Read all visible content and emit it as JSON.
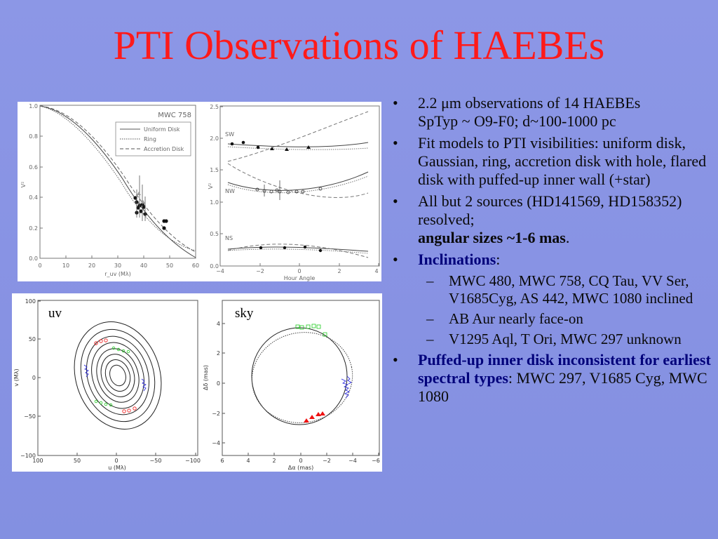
{
  "title": "PTI Observations of HAEBEs",
  "figure_top": {
    "left": {
      "object_label": "MWC 758",
      "legend": [
        "Uniform Disk",
        "Ring",
        "Accretion Disk"
      ],
      "xlabel": "r_uv (Mλ)",
      "ylabel": "V²",
      "xticks": [
        "0",
        "10",
        "20",
        "30",
        "40",
        "50",
        "60"
      ],
      "yticks": [
        "0.0",
        "0.2",
        "0.4",
        "0.6",
        "0.8",
        "1.0"
      ]
    },
    "right": {
      "baseline_labels": [
        "SW",
        "NW",
        "NS"
      ],
      "xlabel": "Hour Angle",
      "ylabel": "V²",
      "xticks": [
        "−4",
        "−2",
        "0",
        "2",
        "4"
      ],
      "yticks": [
        "0.0",
        "0.5",
        "1.0",
        "1.5",
        "2.0",
        "2.5"
      ]
    }
  },
  "figure_bottom": {
    "uv": {
      "label": "uv",
      "xlabel": "u (Mλ)",
      "ylabel": "v (Mλ)",
      "xticks": [
        "100",
        "50",
        "0",
        "−50",
        "−100"
      ],
      "yticks": [
        "−100",
        "−50",
        "0",
        "50",
        "100"
      ]
    },
    "sky": {
      "label": "sky",
      "xlabel": "Δα (mas)",
      "ylabel": "Δδ (mas)",
      "xticks": [
        "6",
        "4",
        "2",
        "0",
        "−2",
        "−4",
        "−6"
      ],
      "yticks": [
        "−4",
        "−2",
        "0",
        "2",
        "4"
      ]
    }
  },
  "bullets": {
    "b1": {
      "line1": "2.2 μm observations of 14 HAEBEs",
      "line2": "SpTyp ~ O9-F0;   d~100-1000 pc"
    },
    "b2": "Fit models to PTI visibilities: uniform disk, Gaussian, ring, accretion disk with hole, flared disk with puffed-up inner wall (+star)",
    "b3": {
      "text": "All but 2 sources (HD141569, HD158352) resolved;",
      "bold": "angular sizes ~1-6 mas",
      "end": "."
    },
    "b4": {
      "bold": "Inclinations",
      "end": ":"
    },
    "sub": [
      "MWC 480, MWC 758, CQ Tau, VV Ser, V1685Cyg, AS 442, MWC 1080 inclined",
      "AB Aur nearly face-on",
      "V1295 Aql, T Ori, MWC 297 unknown"
    ],
    "b5": {
      "bold": "Puffed-up inner disk inconsistent for earliest spectral types",
      "end": ": MWC 297, V1685 Cyg, MWC 1080"
    },
    "bullet_char": "•",
    "dash_char": "–"
  }
}
